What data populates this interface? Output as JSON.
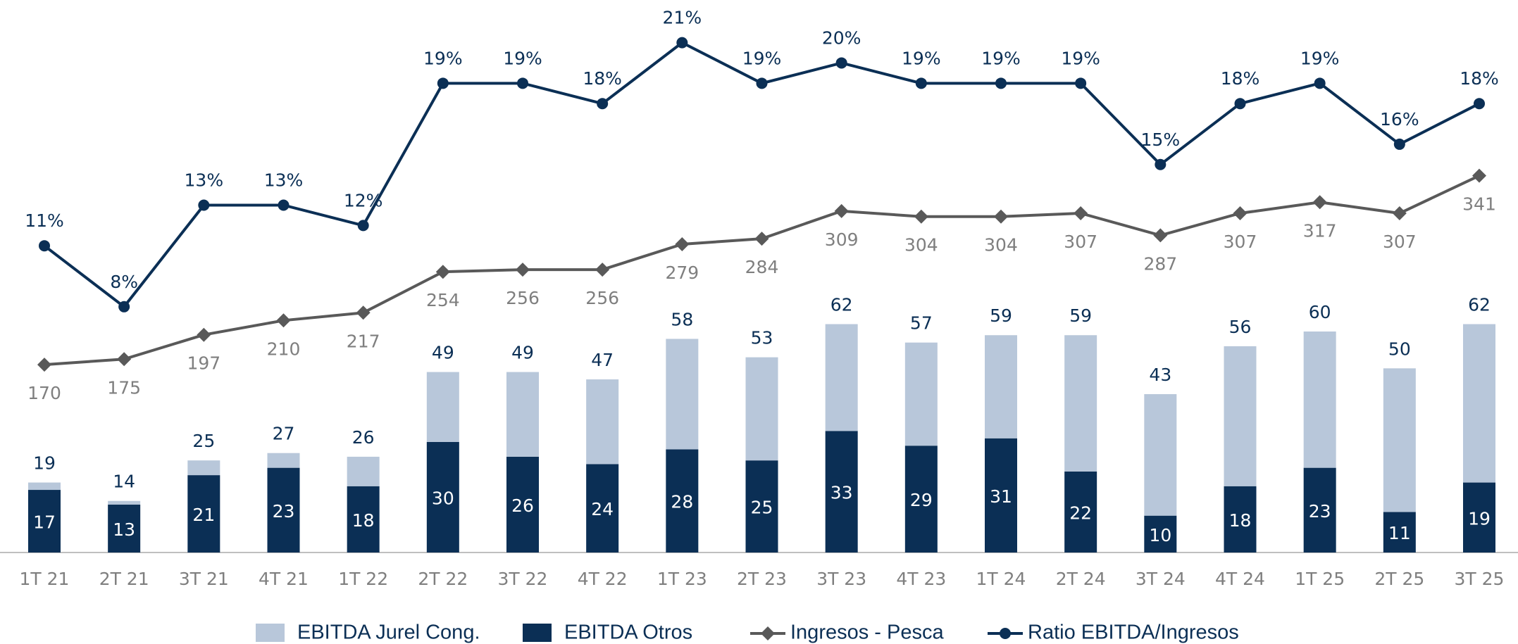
{
  "chart_data": {
    "type": "bar",
    "categories": [
      "1T 21",
      "2T 21",
      "3T 21",
      "4T 21",
      "1T 22",
      "2T 22",
      "3T 22",
      "4T 22",
      "1T 23",
      "2T 23",
      "3T 23",
      "4T 23",
      "1T 24",
      "2T 24",
      "3T 24",
      "4T 24",
      "1T 25",
      "2T 25",
      "3T 25"
    ],
    "ylim": [
      0,
      150
    ],
    "y2lim": [
      0,
      500
    ],
    "y3lim": [
      -4.1,
      23.1
    ],
    "series": [
      {
        "name": "EBITDA Otros",
        "color": "#0b2f55",
        "values": [
          17,
          13,
          21,
          23,
          18,
          30,
          26,
          24,
          28,
          25,
          33,
          29,
          31,
          22,
          10,
          18,
          23,
          11,
          19
        ]
      },
      {
        "name": "EBITDA Jurel Cong.",
        "color": "#b8c7da",
        "values": [
          2,
          1,
          4,
          4,
          8,
          19,
          23,
          23,
          30,
          28,
          29,
          28,
          28,
          37,
          33,
          38,
          37,
          39,
          43
        ]
      },
      {
        "name": "Ingresos - Pesca",
        "type": "line",
        "axis": "y2",
        "color": "#595959",
        "values": [
          170,
          175,
          197,
          210,
          217,
          254,
          256,
          256,
          279,
          284,
          309,
          304,
          304,
          307,
          287,
          307,
          317,
          307,
          341
        ]
      },
      {
        "name": "Ratio EBITDA/Ingresos",
        "type": "line",
        "axis": "y3",
        "color": "#0b2f55",
        "values": [
          11,
          8,
          13,
          13,
          12,
          19,
          19,
          18,
          21,
          19,
          20,
          19,
          19,
          19,
          15,
          18,
          19,
          16,
          18
        ],
        "value_labels": [
          "11%",
          "8%",
          "13%",
          "13%",
          "12%",
          "19%",
          "19%",
          "18%",
          "21%",
          "19%",
          "20%",
          "19%",
          "19%",
          "19%",
          "15%",
          "18%",
          "19%",
          "16%",
          "18%"
        ]
      }
    ],
    "totals": [
      19,
      14,
      25,
      27,
      26,
      49,
      49,
      47,
      58,
      53,
      62,
      57,
      59,
      59,
      43,
      56,
      60,
      50,
      62
    ]
  }
}
